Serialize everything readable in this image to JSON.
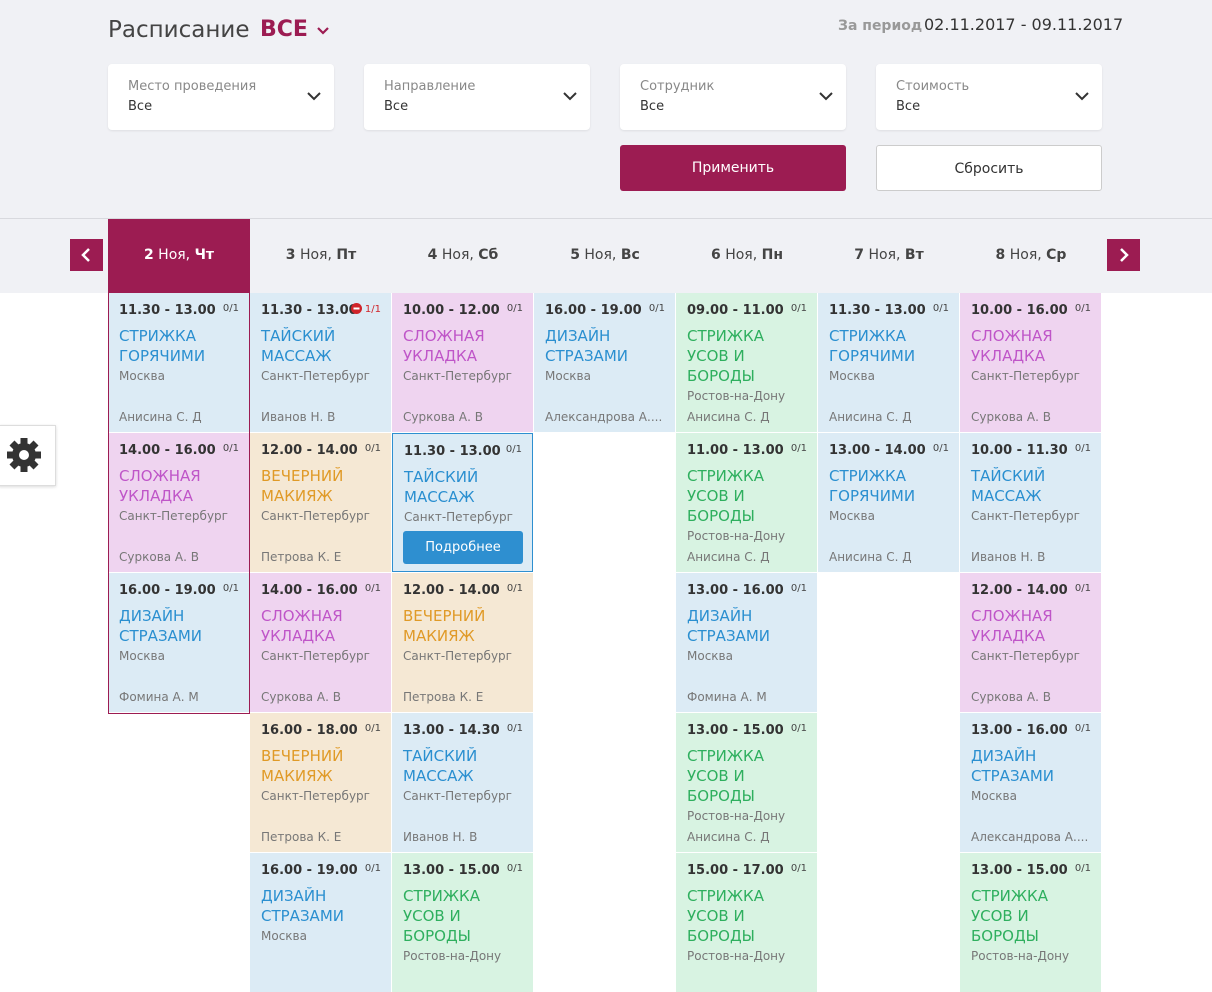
{
  "header": {
    "title": "Расписание",
    "filter": "ВСЕ",
    "period_label": "За период",
    "period": "02.11.2017 - 09.11.2017"
  },
  "filters": [
    {
      "label": "Место проведения",
      "value": "Все"
    },
    {
      "label": "Направление",
      "value": "Все"
    },
    {
      "label": "Сотрудник",
      "value": "Все"
    },
    {
      "label": "Стоимость",
      "value": "Все"
    }
  ],
  "buttons": {
    "apply": "Применить",
    "reset": "Сбросить"
  },
  "days": [
    {
      "day": "2",
      "month": "Ноя,",
      "weekday": "Чт",
      "selected": true,
      "events": [
        {
          "time": "11.30 - 13.00",
          "count": "0/1",
          "title": "СТРИЖКА ГОРЯЧИМИ",
          "place": "Москва",
          "staff": "Анисина С. Д",
          "color": "blue"
        },
        {
          "time": "14.00 - 16.00",
          "count": "0/1",
          "title": "СЛОЖНАЯ УКЛАДКА",
          "place": "Санкт-Петербург",
          "staff": "Суркова А. В",
          "color": "pink"
        },
        {
          "time": "16.00 - 19.00",
          "count": "0/1",
          "title": "ДИЗАЙН СТРАЗАМИ",
          "place": "Москва",
          "staff": "Фомина А. М",
          "color": "blue"
        }
      ]
    },
    {
      "day": "3",
      "month": "Ноя,",
      "weekday": "Пт",
      "events": [
        {
          "time": "11.30 - 13.00",
          "count": "1/1",
          "full": true,
          "title": "ТАЙСКИЙ МАССАЖ",
          "place": "Санкт-Петербург",
          "staff": "Иванов Н. В",
          "color": "blue"
        },
        {
          "time": "12.00 - 14.00",
          "count": "0/1",
          "title": "ВЕЧЕРНИЙ МАКИЯЖ",
          "place": "Санкт-Петербург",
          "staff": "Петрова К. Е",
          "color": "orange"
        },
        {
          "time": "14.00 - 16.00",
          "count": "0/1",
          "title": "СЛОЖНАЯ УКЛАДКА",
          "place": "Санкт-Петербург",
          "staff": "Суркова А. В",
          "color": "pink"
        },
        {
          "time": "16.00 - 18.00",
          "count": "0/1",
          "title": "ВЕЧЕРНИЙ МАКИЯЖ",
          "place": "Санкт-Петербург",
          "staff": "Петрова К. Е",
          "color": "orange"
        },
        {
          "time": "16.00 - 19.00",
          "count": "0/1",
          "title": "ДИЗАЙН СТРАЗАМИ",
          "place": "Москва",
          "color": "blue"
        }
      ]
    },
    {
      "day": "4",
      "month": "Ноя,",
      "weekday": "Сб",
      "events": [
        {
          "time": "10.00 - 12.00",
          "count": "0/1",
          "title": "СЛОЖНАЯ УКЛАДКА",
          "place": "Санкт-Петербург",
          "staff": "Суркова А. В",
          "color": "pink"
        },
        {
          "time": "11.30 - 13.00",
          "count": "0/1",
          "title": "ТАЙСКИЙ МАССАЖ",
          "place": "Санкт-Петербург",
          "button": "Подробнее",
          "color": "blue"
        },
        {
          "time": "12.00 - 14.00",
          "count": "0/1",
          "title": "ВЕЧЕРНИЙ МАКИЯЖ",
          "place": "Санкт-Петербург",
          "staff": "Петрова К. Е",
          "color": "orange"
        },
        {
          "time": "13.00 - 14.30",
          "count": "0/1",
          "title": "ТАЙСКИЙ МАССАЖ",
          "place": "Санкт-Петербург",
          "staff": "Иванов Н. В",
          "color": "blue"
        },
        {
          "time": "13.00 - 15.00",
          "count": "0/1",
          "title": "СТРИЖКА УСОВ И БОРОДЫ",
          "place": "Ростов-на-Дону",
          "color": "green"
        }
      ]
    },
    {
      "day": "5",
      "month": "Ноя,",
      "weekday": "Вс",
      "events": [
        {
          "time": "16.00 - 19.00",
          "count": "0/1",
          "title": "ДИЗАЙН СТРАЗАМИ",
          "place": "Москва",
          "staff": "Александрова А....",
          "color": "blue"
        }
      ]
    },
    {
      "day": "6",
      "month": "Ноя,",
      "weekday": "Пн",
      "events": [
        {
          "time": "09.00 - 11.00",
          "count": "0/1",
          "title": "СТРИЖКА УСОВ И БОРОДЫ",
          "place": "Ростов-на-Дону",
          "staff": "Анисина С. Д",
          "color": "green"
        },
        {
          "time": "11.00 - 13.00",
          "count": "0/1",
          "title": "СТРИЖКА УСОВ И БОРОДЫ",
          "place": "Ростов-на-Дону",
          "staff": "Анисина С. Д",
          "color": "green"
        },
        {
          "time": "13.00 - 16.00",
          "count": "0/1",
          "title": "ДИЗАЙН СТРАЗАМИ",
          "place": "Москва",
          "staff": "Фомина А. М",
          "color": "blue"
        },
        {
          "time": "13.00 - 15.00",
          "count": "0/1",
          "title": "СТРИЖКА УСОВ И БОРОДЫ",
          "place": "Ростов-на-Дону",
          "staff": "Анисина С. Д",
          "color": "green"
        },
        {
          "time": "15.00 - 17.00",
          "count": "0/1",
          "title": "СТРИЖКА УСОВ И БОРОДЫ",
          "place": "Ростов-на-Дону",
          "color": "green"
        }
      ]
    },
    {
      "day": "7",
      "month": "Ноя,",
      "weekday": "Вт",
      "events": [
        {
          "time": "11.30 - 13.00",
          "count": "0/1",
          "title": "СТРИЖКА ГОРЯЧИМИ",
          "place": "Москва",
          "staff": "Анисина С. Д",
          "color": "blue"
        },
        {
          "time": "13.00 - 14.00",
          "count": "0/1",
          "title": "СТРИЖКА ГОРЯЧИМИ",
          "place": "Москва",
          "staff": "Анисина С. Д",
          "color": "blue"
        }
      ]
    },
    {
      "day": "8",
      "month": "Ноя,",
      "weekday": "Ср",
      "events": [
        {
          "time": "10.00 - 16.00",
          "count": "0/1",
          "title": "СЛОЖНАЯ УКЛАДКА",
          "place": "Санкт-Петербург",
          "staff": "Суркова А. В",
          "color": "pink"
        },
        {
          "time": "10.00 - 11.30",
          "count": "0/1",
          "title": "ТАЙСКИЙ МАССАЖ",
          "place": "Санкт-Петербург",
          "staff": "Иванов Н. В",
          "color": "blue"
        },
        {
          "time": "12.00 - 14.00",
          "count": "0/1",
          "title": "СЛОЖНАЯ УКЛАДКА",
          "place": "Санкт-Петербург",
          "staff": "Суркова А. В",
          "color": "pink"
        },
        {
          "time": "13.00 - 16.00",
          "count": "0/1",
          "title": "ДИЗАЙН СТРАЗАМИ",
          "place": "Москва",
          "staff": "Александрова А....",
          "color": "blue"
        },
        {
          "time": "13.00 - 15.00",
          "count": "0/1",
          "title": "СТРИЖКА УСОВ И БОРОДЫ",
          "place": "Ростов-на-Дону",
          "color": "green"
        }
      ]
    }
  ]
}
